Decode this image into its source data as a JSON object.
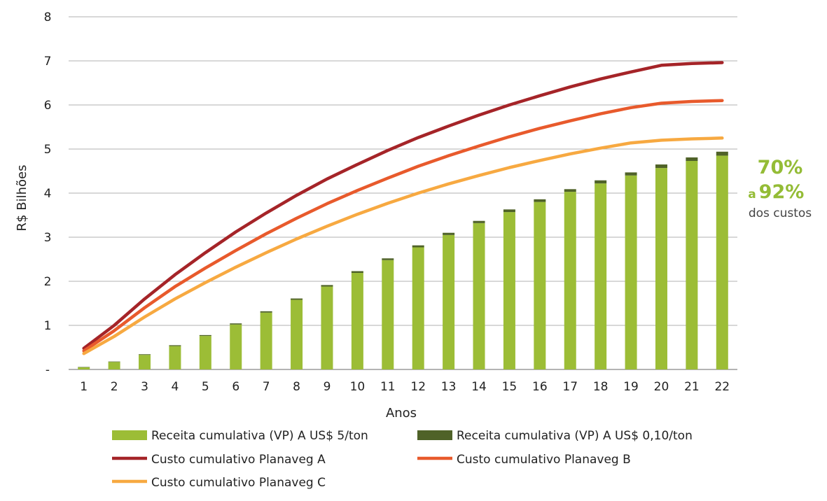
{
  "chart_data": {
    "type": "bar",
    "stacked": true,
    "xlabel": "Anos",
    "ylabel": "R$ Bilhões",
    "categories": [
      "1",
      "2",
      "3",
      "4",
      "5",
      "6",
      "7",
      "8",
      "9",
      "10",
      "11",
      "12",
      "13",
      "14",
      "15",
      "16",
      "17",
      "18",
      "19",
      "20",
      "21",
      "22"
    ],
    "ylim": [
      0,
      8
    ],
    "yticks": [
      {
        "value": 0,
        "label": "-"
      },
      {
        "value": 1,
        "label": "1"
      },
      {
        "value": 2,
        "label": "2"
      },
      {
        "value": 3,
        "label": "3"
      },
      {
        "value": 4,
        "label": "4"
      },
      {
        "value": 5,
        "label": "5"
      },
      {
        "value": 6,
        "label": "6"
      },
      {
        "value": 7,
        "label": "7"
      },
      {
        "value": 8,
        "label": "8"
      }
    ],
    "grid": true,
    "legend_position": "bottom",
    "bar_series": [
      {
        "name": "Receita cumulativa (VP) A US$ 5/ton",
        "color": "#9cbd36",
        "values": [
          0.05,
          0.17,
          0.33,
          0.53,
          0.76,
          1.02,
          1.29,
          1.58,
          1.88,
          2.19,
          2.48,
          2.77,
          3.05,
          3.32,
          3.57,
          3.8,
          4.03,
          4.22,
          4.4,
          4.57,
          4.73,
          4.85
        ]
      },
      {
        "name": "Receita cumulativa (VP) A US$ 0,10/ton",
        "color": "#4f6228",
        "values": [
          0.005,
          0.01,
          0.015,
          0.02,
          0.02,
          0.025,
          0.03,
          0.03,
          0.035,
          0.04,
          0.04,
          0.045,
          0.05,
          0.05,
          0.06,
          0.06,
          0.06,
          0.07,
          0.07,
          0.08,
          0.08,
          0.09
        ]
      }
    ],
    "line_series": [
      {
        "name": "Custo cumulativo Planaveg A",
        "color": "#a52428",
        "values": [
          0.48,
          1.0,
          1.6,
          2.15,
          2.65,
          3.12,
          3.55,
          3.95,
          4.32,
          4.65,
          4.97,
          5.26,
          5.52,
          5.77,
          6.0,
          6.21,
          6.41,
          6.59,
          6.75,
          6.9,
          6.94,
          6.96
        ]
      },
      {
        "name": "Custo cumulativo Planaveg B",
        "color": "#e85a2c",
        "values": [
          0.42,
          0.88,
          1.4,
          1.88,
          2.3,
          2.7,
          3.08,
          3.43,
          3.76,
          4.06,
          4.34,
          4.61,
          4.85,
          5.07,
          5.28,
          5.47,
          5.64,
          5.8,
          5.94,
          6.04,
          6.08,
          6.1
        ]
      },
      {
        "name": "Custo cumulativo Planaveg C",
        "color": "#f7a941",
        "values": [
          0.36,
          0.75,
          1.19,
          1.6,
          1.97,
          2.32,
          2.65,
          2.96,
          3.25,
          3.52,
          3.77,
          4.0,
          4.21,
          4.4,
          4.58,
          4.74,
          4.89,
          5.02,
          5.14,
          5.2,
          5.23,
          5.25
        ]
      }
    ],
    "annotation": {
      "line1": "70%",
      "prefix": "a",
      "line2": "92%",
      "line3": "dos custos"
    }
  }
}
